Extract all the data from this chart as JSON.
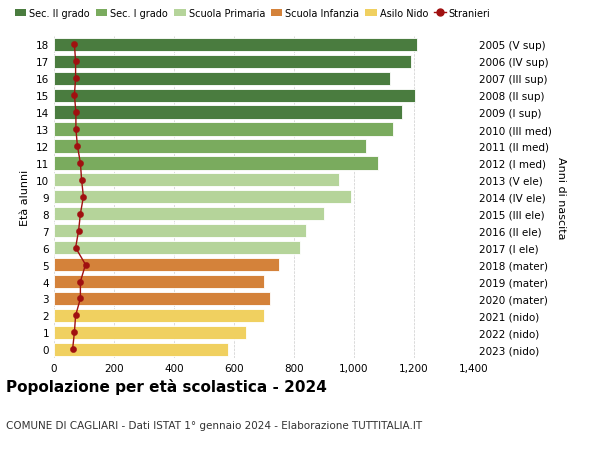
{
  "ages": [
    18,
    17,
    16,
    15,
    14,
    13,
    12,
    11,
    10,
    9,
    8,
    7,
    6,
    5,
    4,
    3,
    2,
    1,
    0
  ],
  "years_labels": [
    "2005 (V sup)",
    "2006 (IV sup)",
    "2007 (III sup)",
    "2008 (II sup)",
    "2009 (I sup)",
    "2010 (III med)",
    "2011 (II med)",
    "2012 (I med)",
    "2013 (V ele)",
    "2014 (IV ele)",
    "2015 (III ele)",
    "2016 (II ele)",
    "2017 (I ele)",
    "2018 (mater)",
    "2019 (mater)",
    "2020 (mater)",
    "2021 (nido)",
    "2022 (nido)",
    "2023 (nido)"
  ],
  "bar_values": [
    1210,
    1190,
    1120,
    1205,
    1160,
    1130,
    1040,
    1080,
    950,
    990,
    900,
    840,
    820,
    750,
    700,
    720,
    700,
    640,
    580
  ],
  "bar_colors": [
    "#4a7c3f",
    "#4a7c3f",
    "#4a7c3f",
    "#4a7c3f",
    "#4a7c3f",
    "#7aab5e",
    "#7aab5e",
    "#7aab5e",
    "#b5d49a",
    "#b5d49a",
    "#b5d49a",
    "#b5d49a",
    "#b5d49a",
    "#d4823a",
    "#d4823a",
    "#d4823a",
    "#f0d060",
    "#f0d060",
    "#f0d060"
  ],
  "stranieri_values": [
    68,
    72,
    72,
    68,
    73,
    73,
    78,
    88,
    92,
    98,
    88,
    82,
    72,
    105,
    88,
    88,
    72,
    68,
    62
  ],
  "title": "Popolazione per età scolastica - 2024",
  "subtitle": "COMUNE DI CAGLIARI - Dati ISTAT 1° gennaio 2024 - Elaborazione TUTTITALIA.IT",
  "ylabel_left": "Età alunni",
  "ylabel_right": "Anni di nascita",
  "xlim": [
    0,
    1400
  ],
  "xticks": [
    0,
    200,
    400,
    600,
    800,
    1000,
    1200,
    1400
  ],
  "xtick_labels": [
    "0",
    "200",
    "400",
    "600",
    "800",
    "1,000",
    "1,200",
    "1,400"
  ],
  "legend_items": [
    {
      "label": "Sec. II grado",
      "color": "#4a7c3f"
    },
    {
      "label": "Sec. I grado",
      "color": "#7aab5e"
    },
    {
      "label": "Scuola Primaria",
      "color": "#b5d49a"
    },
    {
      "label": "Scuola Infanzia",
      "color": "#d4823a"
    },
    {
      "label": "Asilo Nido",
      "color": "#f0d060"
    },
    {
      "label": "Stranieri",
      "color": "#a01010"
    }
  ],
  "background_color": "#ffffff",
  "bar_height": 0.78,
  "grid_color": "#cccccc",
  "title_fontsize": 11,
  "subtitle_fontsize": 7.5,
  "axis_fontsize": 8,
  "tick_fontsize": 7.5,
  "legend_fontsize": 7
}
